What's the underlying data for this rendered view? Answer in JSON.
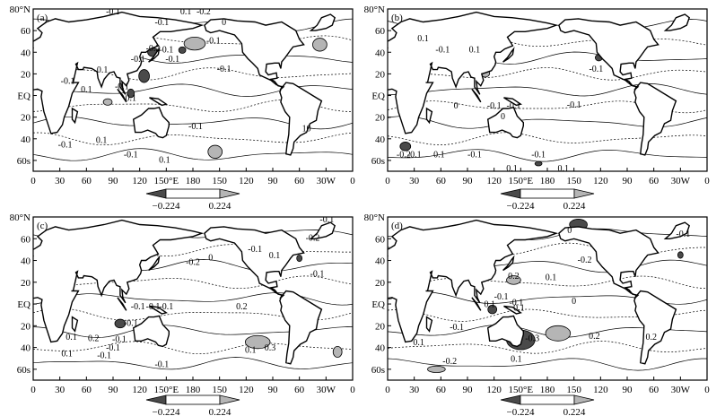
{
  "colors": {
    "neg_shade": "#4a4a4a",
    "pos_shade": "#b5b5b5",
    "contour": "#000000",
    "land_outline": "#000000",
    "background": "#ffffff"
  },
  "lat_labels": [
    "80°N",
    "60",
    "40",
    "20",
    "EQ",
    "20",
    "40",
    "60s"
  ],
  "lon_labels": [
    "0",
    "30",
    "60",
    "90",
    "120",
    "150°E",
    "180",
    "150",
    "120",
    "90",
    "60",
    "30W",
    "0"
  ],
  "colorbar": {
    "min_label": "−0.224",
    "max_label": "0.224"
  },
  "panels": [
    {
      "label": "(a)",
      "contour_labels": [
        {
          "text": "-0.1",
          "lon": 90,
          "lat": 75
        },
        {
          "text": "0.1",
          "lon": 172,
          "lat": 75
        },
        {
          "text": "-0.2",
          "lon": 192,
          "lat": 75
        },
        {
          "text": "-0.1",
          "lon": 145,
          "lat": 65
        },
        {
          "text": "0",
          "lon": 215,
          "lat": 65
        },
        {
          "text": "-0.1",
          "lon": 203,
          "lat": 48
        },
        {
          "text": "-0.2",
          "lon": 135,
          "lat": 41
        },
        {
          "text": "-0.1",
          "lon": 150,
          "lat": 40
        },
        {
          "text": "-0.1",
          "lon": 118,
          "lat": 31
        },
        {
          "text": "-0.1",
          "lon": 157,
          "lat": 31
        },
        {
          "text": "0.1",
          "lon": 78,
          "lat": 21
        },
        {
          "text": "-0.1",
          "lon": 215,
          "lat": 22
        },
        {
          "text": "-0.1",
          "lon": 39,
          "lat": 11
        },
        {
          "text": "0.1",
          "lon": 60,
          "lat": 3
        },
        {
          "text": "-0.1",
          "lon": 100,
          "lat": 6
        },
        {
          "text": "0.1",
          "lon": 110,
          "lat": -5
        },
        {
          "text": "-0.1",
          "lon": 183,
          "lat": -31
        },
        {
          "text": "-0.1",
          "lon": 36,
          "lat": -48
        },
        {
          "text": "0.1",
          "lon": 77,
          "lat": -44
        },
        {
          "text": "-0.1",
          "lon": 110,
          "lat": -57
        },
        {
          "text": "0.1",
          "lon": 148,
          "lat": -62
        },
        {
          "text": "10",
          "lon": 308,
          "lat": -33
        }
      ],
      "shaded_regions": [
        {
          "sign": "neg",
          "lon": 135,
          "lat": 40,
          "rlon": 6,
          "rlat": 4
        },
        {
          "sign": "neg",
          "lon": 168,
          "lat": 42,
          "rlon": 4,
          "rlat": 3
        },
        {
          "sign": "pos",
          "lon": 182,
          "lat": 48,
          "rlon": 12,
          "rlat": 6
        },
        {
          "sign": "neg",
          "lon": 125,
          "lat": 18,
          "rlon": 6,
          "rlat": 6
        },
        {
          "sign": "neg",
          "lon": 110,
          "lat": 2,
          "rlon": 4,
          "rlat": 4
        },
        {
          "sign": "pos",
          "lon": 323,
          "lat": 47,
          "rlon": 8,
          "rlat": 6
        },
        {
          "sign": "neg",
          "lon": 250,
          "lat": 45,
          "rlon": 3,
          "rlat": 3
        },
        {
          "sign": "pos",
          "lon": 205,
          "lat": -52,
          "rlon": 8,
          "rlat": 6
        },
        {
          "sign": "pos",
          "lon": 84,
          "lat": -6,
          "rlon": 5,
          "rlat": 3
        }
      ]
    },
    {
      "label": "(b)",
      "contour_labels": [
        {
          "text": "0.1",
          "lon": 40,
          "lat": 50
        },
        {
          "text": "-0.1",
          "lon": 62,
          "lat": 40
        },
        {
          "text": "0.1",
          "lon": 98,
          "lat": 40
        },
        {
          "text": "-0.1",
          "lon": 235,
          "lat": 22
        },
        {
          "text": "0",
          "lon": 77,
          "lat": -12
        },
        {
          "text": "-0.1",
          "lon": 120,
          "lat": -12
        },
        {
          "text": "-0.1",
          "lon": 142,
          "lat": -12
        },
        {
          "text": "-0.1",
          "lon": 210,
          "lat": -11
        },
        {
          "text": "0",
          "lon": 130,
          "lat": -22
        },
        {
          "text": "-0.2",
          "lon": 18,
          "lat": -57
        },
        {
          "text": "-0.1",
          "lon": 30,
          "lat": -57
        },
        {
          "text": "0.1",
          "lon": 58,
          "lat": -57
        },
        {
          "text": "-0.1",
          "lon": 98,
          "lat": -57
        },
        {
          "text": "-0.1",
          "lon": 170,
          "lat": -57
        },
        {
          "text": "0.1",
          "lon": 140,
          "lat": -70
        },
        {
          "text": "0.1",
          "lon": 198,
          "lat": -70
        }
      ],
      "shaded_regions": [
        {
          "sign": "neg",
          "lon": 238,
          "lat": 35,
          "rlon": 4,
          "rlat": 3
        },
        {
          "sign": "neg",
          "lon": 210,
          "lat": 63,
          "rlon": 4,
          "rlat": 3
        },
        {
          "sign": "neg",
          "lon": 20,
          "lat": -47,
          "rlon": 6,
          "rlat": 4
        },
        {
          "sign": "neg",
          "lon": 170,
          "lat": -63,
          "rlon": 4,
          "rlat": 2
        },
        {
          "sign": "pos",
          "lon": 110,
          "lat": 21,
          "rlon": 5,
          "rlat": 4
        }
      ]
    },
    {
      "label": "(c)",
      "contour_labels": [
        {
          "text": "-0.1",
          "lon": 331,
          "lat": 75
        },
        {
          "text": "-0.2",
          "lon": 315,
          "lat": 58
        },
        {
          "text": "0.1",
          "lon": 272,
          "lat": 42
        },
        {
          "text": "-0.2",
          "lon": 180,
          "lat": 36
        },
        {
          "text": "0",
          "lon": 200,
          "lat": 40
        },
        {
          "text": "-0.1",
          "lon": 250,
          "lat": 48
        },
        {
          "text": "-0.1",
          "lon": 320,
          "lat": 25
        },
        {
          "text": "0.2",
          "lon": 235,
          "lat": -5
        },
        {
          "text": "-0.1",
          "lon": 118,
          "lat": -5
        },
        {
          "text": "-0.1",
          "lon": 135,
          "lat": -5
        },
        {
          "text": "-0.1",
          "lon": 150,
          "lat": -5
        },
        {
          "text": "-0.1",
          "lon": 110,
          "lat": -20
        },
        {
          "text": "0.1",
          "lon": 43,
          "lat": -33
        },
        {
          "text": "0.2",
          "lon": 68,
          "lat": -34
        },
        {
          "text": "-0.1",
          "lon": 97,
          "lat": -35
        },
        {
          "text": "0.1",
          "lon": 245,
          "lat": -45
        },
        {
          "text": "-0.1",
          "lon": 90,
          "lat": -43
        },
        {
          "text": "0.1",
          "lon": 38,
          "lat": -48
        },
        {
          "text": "-0.1",
          "lon": 80,
          "lat": -50
        },
        {
          "text": "-0.1",
          "lon": 145,
          "lat": -58
        },
        {
          "text": "0.3",
          "lon": 267,
          "lat": -43
        }
      ],
      "shaded_regions": [
        {
          "sign": "pos",
          "lon": 253,
          "lat": -35,
          "rlon": 14,
          "rlat": 6
        },
        {
          "sign": "neg",
          "lon": 98,
          "lat": -18,
          "rlon": 6,
          "rlat": 4
        },
        {
          "sign": "pos",
          "lon": 130,
          "lat": -20,
          "rlon": 4,
          "rlat": 3
        },
        {
          "sign": "pos",
          "lon": 343,
          "lat": -44,
          "rlon": 5,
          "rlat": 5
        },
        {
          "sign": "neg",
          "lon": 250,
          "lat": 58,
          "rlon": 3,
          "rlat": 3
        },
        {
          "sign": "neg",
          "lon": 300,
          "lat": 42,
          "rlon": 3,
          "rlat": 3
        }
      ]
    },
    {
      "label": "(d)",
      "contour_labels": [
        {
          "text": "0",
          "lon": 205,
          "lat": 65
        },
        {
          "text": "-0.1",
          "lon": 333,
          "lat": 62
        },
        {
          "text": "-0.2",
          "lon": 222,
          "lat": 38
        },
        {
          "text": "0.2",
          "lon": 142,
          "lat": 23
        },
        {
          "text": "0.1",
          "lon": 184,
          "lat": 22
        },
        {
          "text": "-0.1",
          "lon": 128,
          "lat": 4
        },
        {
          "text": "-0.1",
          "lon": 145,
          "lat": -1
        },
        {
          "text": "0.1",
          "lon": 115,
          "lat": -3
        },
        {
          "text": "0",
          "lon": 210,
          "lat": 0
        },
        {
          "text": "0.1",
          "lon": 148,
          "lat": -6
        },
        {
          "text": "-0.3",
          "lon": 163,
          "lat": -34
        },
        {
          "text": "0.2",
          "lon": 233,
          "lat": -32
        },
        {
          "text": "-0.1",
          "lon": 78,
          "lat": -24
        },
        {
          "text": "0.2",
          "lon": 297,
          "lat": -33
        },
        {
          "text": "0.1",
          "lon": 35,
          "lat": -38
        },
        {
          "text": "-0.2",
          "lon": 70,
          "lat": -55
        },
        {
          "text": "0.1",
          "lon": 145,
          "lat": -53
        }
      ],
      "shaded_regions": [
        {
          "sign": "neg",
          "lon": 150,
          "lat": -33,
          "rlon": 16,
          "rlat": 9
        },
        {
          "sign": "pos",
          "lon": 192,
          "lat": -27,
          "rlon": 14,
          "rlat": 7
        },
        {
          "sign": "neg",
          "lon": 215,
          "lat": 73,
          "rlon": 10,
          "rlat": 5
        },
        {
          "sign": "neg",
          "lon": 118,
          "lat": -5,
          "rlon": 5,
          "rlat": 4
        },
        {
          "sign": "pos",
          "lon": 142,
          "lat": 22,
          "rlon": 8,
          "rlat": 4
        },
        {
          "sign": "pos",
          "lon": 55,
          "lat": -60,
          "rlon": 10,
          "rlat": 3
        },
        {
          "sign": "neg",
          "lon": 330,
          "lat": 45,
          "rlon": 3,
          "rlat": 3
        }
      ]
    }
  ]
}
